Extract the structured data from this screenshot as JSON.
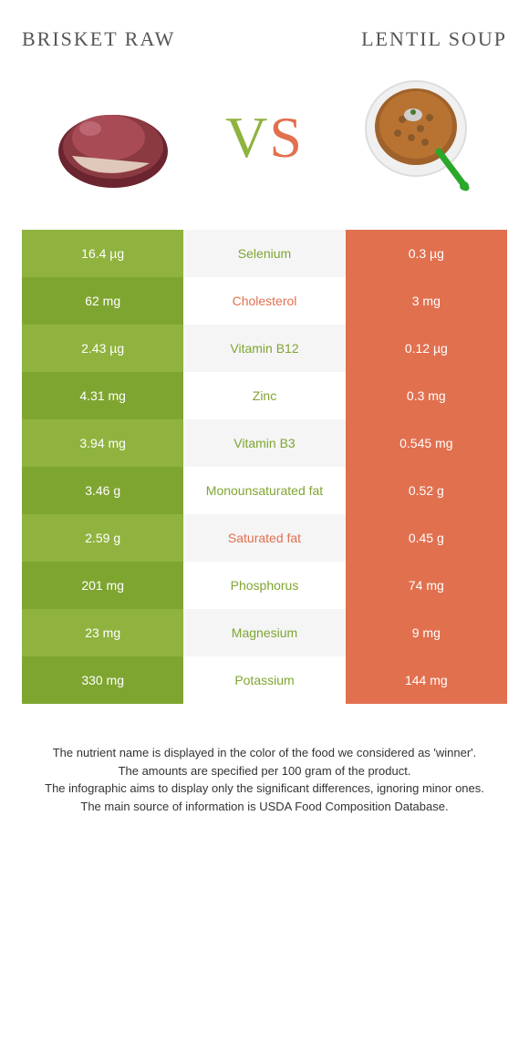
{
  "header": {
    "left_title": "BRISKET RAW",
    "right_title": "LENTIL SOUP"
  },
  "vs": {
    "v": "V",
    "s": "S"
  },
  "colors": {
    "green_light": "#8fb33e",
    "green_dark": "#7fa531",
    "orange": "#e1704f",
    "mid_bg_odd": "#f5f5f5",
    "mid_bg_even": "#ffffff"
  },
  "rows": [
    {
      "left": "16.4 µg",
      "label": "Selenium",
      "right": "0.3 µg",
      "winner": "green"
    },
    {
      "left": "62 mg",
      "label": "Cholesterol",
      "right": "3 mg",
      "winner": "orange"
    },
    {
      "left": "2.43 µg",
      "label": "Vitamin B12",
      "right": "0.12 µg",
      "winner": "green"
    },
    {
      "left": "4.31 mg",
      "label": "Zinc",
      "right": "0.3 mg",
      "winner": "green"
    },
    {
      "left": "3.94 mg",
      "label": "Vitamin B3",
      "right": "0.545 mg",
      "winner": "green"
    },
    {
      "left": "3.46 g",
      "label": "Monounsaturated fat",
      "right": "0.52 g",
      "winner": "green"
    },
    {
      "left": "2.59 g",
      "label": "Saturated fat",
      "right": "0.45 g",
      "winner": "orange"
    },
    {
      "left": "201 mg",
      "label": "Phosphorus",
      "right": "74 mg",
      "winner": "green"
    },
    {
      "left": "23 mg",
      "label": "Magnesium",
      "right": "9 mg",
      "winner": "green"
    },
    {
      "left": "330 mg",
      "label": "Potassium",
      "right": "144 mg",
      "winner": "green"
    }
  ],
  "footer": {
    "line1": "The nutrient name is displayed in the color of the food we considered as 'winner'.",
    "line2": "The amounts are specified per 100 gram of the product.",
    "line3": "The infographic aims to display only the significant differences, ignoring minor ones.",
    "line4": "The main source of information is USDA Food Composition Database."
  }
}
